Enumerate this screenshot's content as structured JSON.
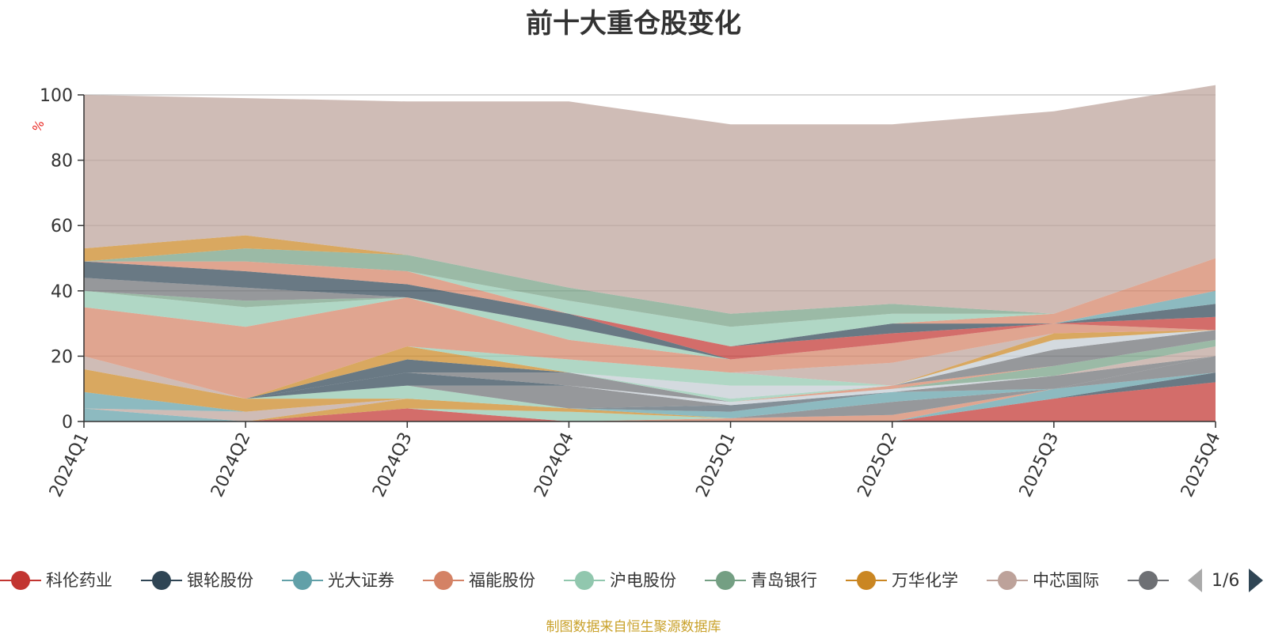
{
  "chart_data": {
    "type": "area",
    "stacked": true,
    "title": "前十大重仓股变化",
    "ylabel": "%",
    "ylim": [
      0,
      100
    ],
    "yticks": [
      0,
      20,
      40,
      60,
      80,
      100
    ],
    "grid": true,
    "categories": [
      "2024Q1",
      "2024Q2",
      "2024Q3",
      "2024Q4",
      "2025Q1",
      "2025Q2",
      "2025Q3",
      "2025Q4"
    ],
    "series": [
      {
        "name": "科伦药业",
        "color": "#c23531",
        "values": [
          0,
          0,
          4,
          0,
          0,
          0,
          7,
          12
        ]
      },
      {
        "name": "银轮股份",
        "color": "#2f4554",
        "values": [
          0,
          0,
          0,
          0,
          0,
          0,
          0,
          3
        ]
      },
      {
        "name": "光大证券",
        "color": "#61a0a8",
        "values": [
          4,
          0,
          0,
          0,
          0,
          0,
          3,
          0
        ]
      },
      {
        "name": "福能股份",
        "color": "#d48265",
        "values": [
          0,
          0,
          0,
          0,
          1,
          2,
          0,
          0
        ]
      },
      {
        "name": "沪电股份",
        "color": "#91c7ae",
        "values": [
          0,
          0,
          0,
          3,
          0,
          0,
          0,
          0
        ]
      },
      {
        "name": "青岛银行",
        "color": "#749f83",
        "values": [
          0,
          0,
          0,
          0,
          0,
          0,
          0,
          0
        ]
      },
      {
        "name": "万华化学",
        "color": "#ca8622",
        "values": [
          0,
          0,
          3,
          1,
          0,
          0,
          0,
          0
        ]
      },
      {
        "name": "中芯国际",
        "color": "#bda29a",
        "values": [
          0,
          3,
          0,
          0,
          0,
          0,
          0,
          0
        ]
      }
    ],
    "legend_page": "1/6"
  },
  "chart_extra": {
    "hidden_name": "",
    "others": [
      {
        "color": "#6e7074",
        "values": [
          0,
          0,
          0,
          0,
          0,
          4,
          0,
          5
        ]
      },
      {
        "color": "#61a0a8",
        "values": [
          5,
          0,
          0,
          0,
          2,
          3,
          0,
          0
        ]
      },
      {
        "color": "#546570",
        "values": [
          0,
          0,
          0,
          0,
          2,
          0,
          0,
          0
        ]
      },
      {
        "color": "#c23531",
        "values": [
          0,
          0,
          0,
          0,
          0,
          0,
          0,
          0
        ]
      },
      {
        "color": "#ca8622",
        "values": [
          7,
          4,
          0,
          0,
          0,
          0,
          0,
          0
        ]
      },
      {
        "color": "#91c7ae",
        "values": [
          0,
          0,
          4,
          0,
          0,
          0,
          0,
          0
        ]
      },
      {
        "color": "#6e7074",
        "values": [
          0,
          0,
          0,
          7,
          0,
          0,
          4,
          0
        ]
      },
      {
        "color": "#bda29a",
        "values": [
          0,
          0,
          0,
          0,
          0,
          0,
          0,
          3
        ]
      },
      {
        "color": "#c4ccd3",
        "values": [
          0,
          0,
          0,
          0,
          1,
          1,
          0,
          0
        ]
      },
      {
        "color": "#2f4554",
        "values": [
          0,
          0,
          4,
          0,
          0,
          0,
          0,
          0
        ]
      },
      {
        "color": "#749f83",
        "values": [
          0,
          0,
          0,
          0,
          0,
          0,
          3,
          2
        ]
      },
      {
        "color": "#6e7074",
        "values": [
          0,
          0,
          0,
          4,
          0,
          0,
          0,
          0
        ]
      },
      {
        "color": "#d48265",
        "values": [
          0,
          0,
          0,
          0,
          0,
          1,
          0,
          0
        ]
      },
      {
        "color": "#91c7ae",
        "values": [
          0,
          0,
          0,
          0,
          1,
          0,
          0,
          0
        ]
      },
      {
        "color": "#6e7074",
        "values": [
          0,
          0,
          0,
          0,
          0,
          0,
          5,
          3
        ]
      },
      {
        "color": "#c4ccd3",
        "values": [
          0,
          0,
          0,
          0,
          4,
          0,
          3,
          0
        ]
      },
      {
        "color": "#2f4554",
        "values": [
          0,
          0,
          4,
          0,
          0,
          0,
          0,
          0
        ]
      },
      {
        "color": "#ca8622",
        "values": [
          0,
          0,
          4,
          0,
          0,
          0,
          2,
          0
        ]
      },
      {
        "color": "#91c7ae",
        "values": [
          0,
          0,
          0,
          4,
          4,
          0,
          0,
          0
        ]
      },
      {
        "color": "#bda29a",
        "values": [
          4,
          0,
          0,
          0,
          0,
          7,
          0,
          0
        ]
      },
      {
        "color": "#d48265",
        "values": [
          15,
          22,
          15,
          6,
          4,
          6,
          3,
          0
        ]
      },
      {
        "color": "#91c7ae",
        "values": [
          5,
          6,
          0,
          4,
          0,
          0,
          0,
          0
        ]
      },
      {
        "color": "#749f83",
        "values": [
          0,
          2,
          0,
          0,
          0,
          0,
          0,
          0
        ]
      },
      {
        "color": "#6e7074",
        "values": [
          4,
          4,
          0,
          0,
          0,
          0,
          0,
          0
        ]
      },
      {
        "color": "#2f4554",
        "values": [
          5,
          5,
          4,
          4,
          0,
          0,
          0,
          0
        ]
      },
      {
        "color": "#c23531",
        "values": [
          0,
          0,
          0,
          0,
          4,
          3,
          0,
          4
        ]
      },
      {
        "color": "#2f4554",
        "values": [
          0,
          0,
          0,
          0,
          0,
          3,
          0,
          4
        ]
      },
      {
        "color": "#61a0a8",
        "values": [
          0,
          0,
          0,
          0,
          0,
          0,
          0,
          4
        ]
      },
      {
        "color": "#d48265",
        "values": [
          0,
          3,
          4,
          0,
          0,
          0,
          3,
          10
        ]
      },
      {
        "color": "#91c7ae",
        "values": [
          0,
          0,
          0,
          4,
          6,
          3,
          0,
          0
        ]
      },
      {
        "color": "#749f83",
        "values": [
          0,
          4,
          5,
          4,
          4,
          3,
          0,
          0
        ]
      },
      {
        "color": "#ca8622",
        "values": [
          4,
          4,
          0,
          0,
          0,
          0,
          0,
          0
        ]
      },
      {
        "color": "#bda29a",
        "values": [
          47,
          42,
          47,
          57,
          58,
          55,
          62,
          53
        ]
      }
    ]
  },
  "footer": {
    "note": "制图数据来自恒生聚源数据库"
  }
}
